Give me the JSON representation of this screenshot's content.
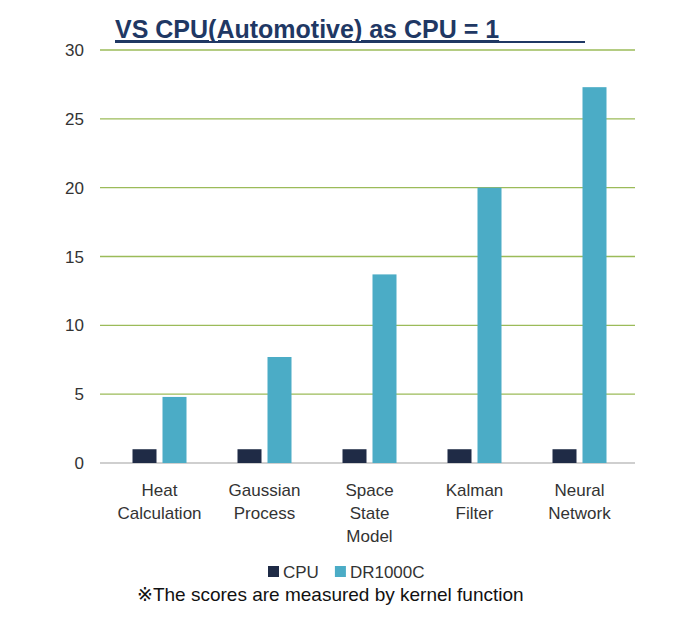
{
  "chart_data": {
    "type": "bar",
    "title": "VS CPU(Automotive) as CPU = 1",
    "categories": [
      "Heat Calculation",
      "Gaussian Process",
      "Space State Model",
      "Kalman Filter",
      "Neural Network"
    ],
    "series": [
      {
        "name": "CPU",
        "color": "#1f2b46",
        "values": [
          1,
          1,
          1,
          1,
          1
        ]
      },
      {
        "name": "DR1000C",
        "color": "#4bacc6",
        "values": [
          4.8,
          7.7,
          13.7,
          20.0,
          27.3
        ]
      }
    ],
    "ylim": [
      0,
      30
    ],
    "yticks": [
      0,
      5,
      10,
      15,
      20,
      25,
      30
    ],
    "grid": true,
    "legend": "bottom",
    "note": "※The scores are measured by kernel function"
  }
}
